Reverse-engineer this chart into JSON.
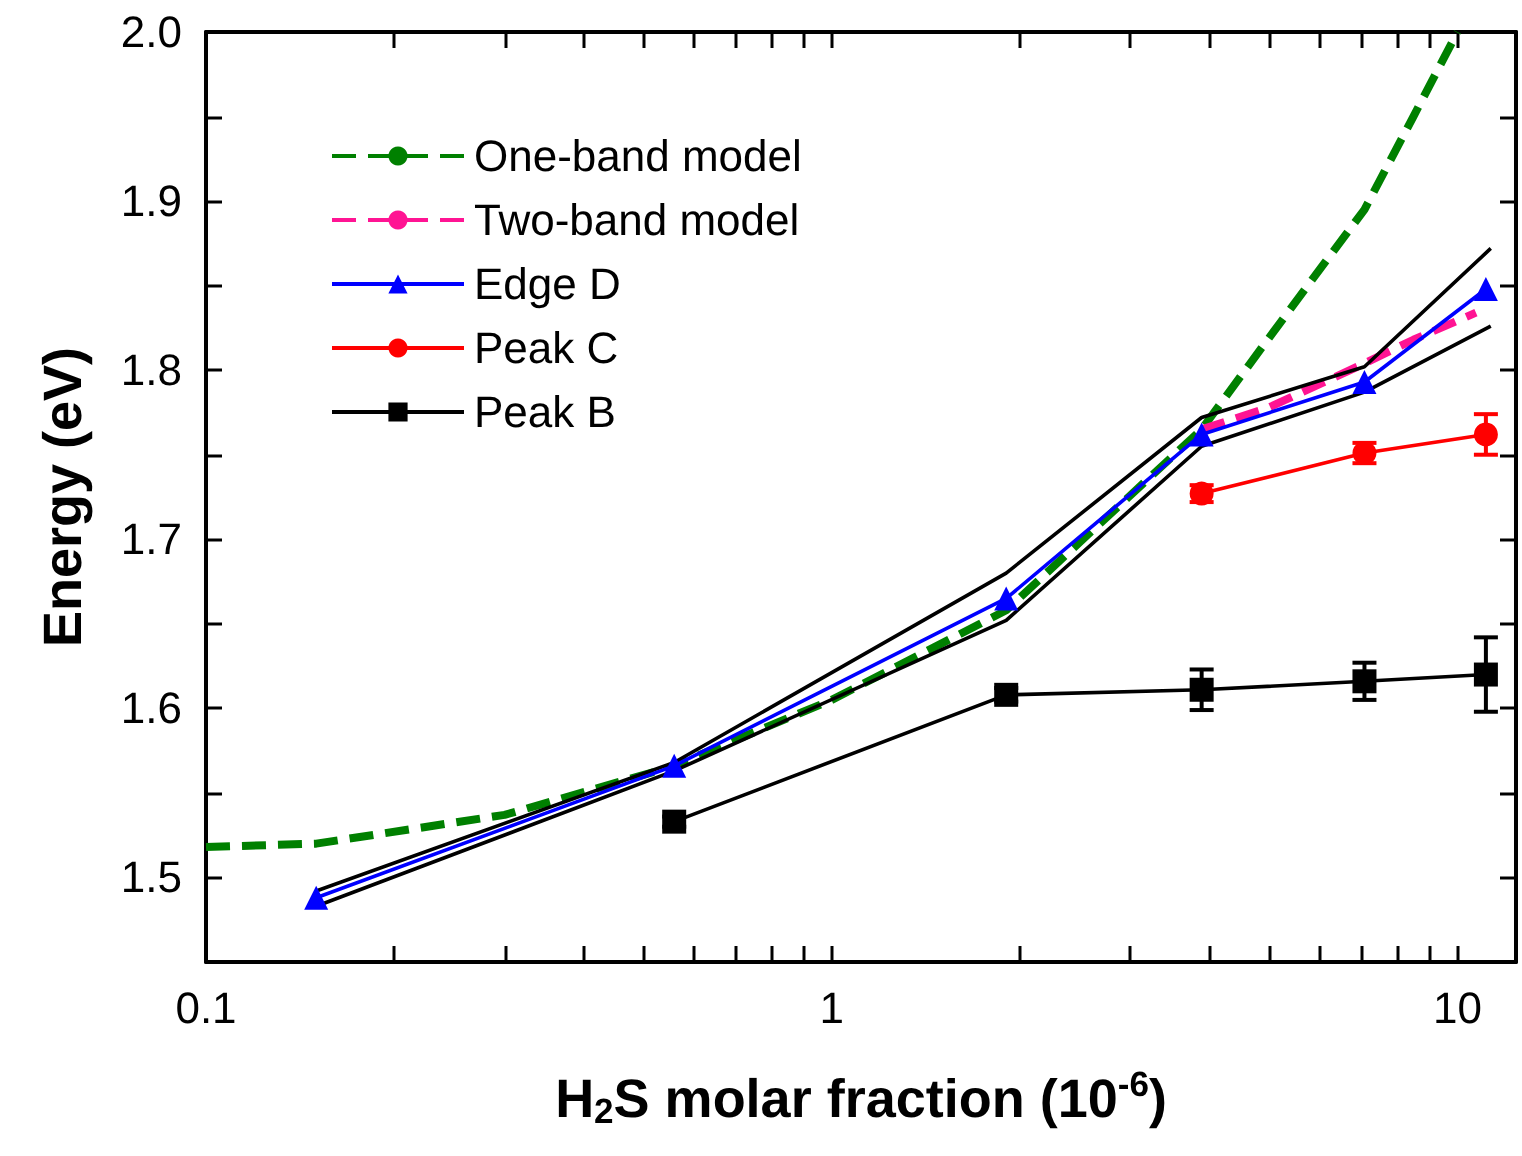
{
  "chart_data": {
    "type": "line",
    "xlabel": "H$_{2}$S molar fraction (10$^{-6}$)",
    "ylabel": "Energy (eV)",
    "log": "x",
    "grid": false,
    "legend": "top left",
    "xlim": [
      0.1,
      12.4
    ],
    "ylim": [
      1.45,
      2.0
    ],
    "xticks": [
      0.1,
      {
        "value": 0.2,
        "label": null
      },
      {
        "value": 0.3,
        "label": null
      },
      {
        "value": 0.4,
        "label": null
      },
      {
        "value": 0.5,
        "label": null
      },
      {
        "value": 0.6,
        "label": null
      },
      {
        "value": 0.7,
        "label": null
      },
      {
        "value": 0.8,
        "label": null
      },
      {
        "value": 0.9,
        "label": null
      },
      1,
      {
        "value": 2,
        "label": null
      },
      {
        "value": 3,
        "label": null
      },
      {
        "value": 4,
        "label": null
      },
      {
        "value": 5,
        "label": null
      },
      {
        "value": 6,
        "label": null
      },
      {
        "value": 7,
        "label": null
      },
      {
        "value": 8,
        "label": null
      },
      {
        "value": 9,
        "label": null
      },
      10
    ],
    "yticks": [
      1.5,
      {
        "value": 1.55,
        "label": null
      },
      1.6,
      {
        "value": 1.65,
        "label": null
      },
      1.7,
      {
        "value": 1.75,
        "label": null
      },
      1.8,
      {
        "value": 1.85,
        "label": null
      },
      1.9,
      {
        "value": 1.95,
        "label": null
      },
      {
        "value": 2,
        "label": "2.0"
      }
    ],
    "series": [
      {
        "name": "One-band model",
        "color": "#008000",
        "line_style": "dashed",
        "marker": "none",
        "x": [
          0.1,
          0.15,
          0.3,
          0.55,
          1,
          1.9,
          3.9,
          5.5,
          7.1,
          8.5,
          10
        ],
        "values": [
          1.518,
          1.52,
          1.537,
          1.565,
          1.605,
          1.658,
          1.765,
          1.84,
          1.895,
          1.95,
          2.0
        ]
      },
      {
        "name": "Two-band model",
        "color": "#ff1493",
        "line_style": "dashed",
        "marker": "none",
        "x": [
          3.9,
          5,
          7.1,
          8.5,
          10.7
        ],
        "values": [
          1.765,
          1.778,
          1.804,
          1.818,
          1.834
        ]
      },
      {
        "name": "Edge D",
        "color": "#0000ff",
        "line_style": "solid",
        "marker": "triangle",
        "x": [
          0.15,
          0.56,
          1.9,
          3.9,
          7.1,
          11.1
        ],
        "values": [
          1.488,
          1.566,
          1.665,
          1.762,
          1.793,
          1.848
        ]
      },
      {
        "name": "Peak C",
        "color": "#ff0000",
        "line_style": "solid",
        "marker": "circle",
        "x": [
          3.9,
          7.1,
          11.1
        ],
        "values": [
          1.727,
          1.751,
          1.762
        ],
        "errors": [
          0.005,
          0.006,
          0.012
        ]
      },
      {
        "name": "Peak B",
        "color": "#000000",
        "line_style": "solid",
        "marker": "square",
        "x": [
          0.56,
          1.9,
          3.9,
          7.1,
          11.1
        ],
        "values": [
          1.533,
          1.608,
          1.611,
          1.616,
          1.62
        ],
        "errors": [
          0.003,
          0.004,
          0.012,
          0.011,
          0.022
        ]
      },
      {
        "color": "#000000",
        "line_style": "solid",
        "marker": "none",
        "x": [
          0.15,
          0.56,
          1.9,
          3.9,
          7.1,
          11.3
        ],
        "values": [
          1.492,
          1.568,
          1.68,
          1.772,
          1.802,
          1.872
        ]
      },
      {
        "color": "#000000",
        "line_style": "solid",
        "marker": "none",
        "x": [
          0.15,
          0.56,
          1.9,
          3.9,
          7.1,
          11.3
        ],
        "values": [
          1.483,
          1.563,
          1.652,
          1.755,
          1.787,
          1.826
        ]
      }
    ]
  }
}
